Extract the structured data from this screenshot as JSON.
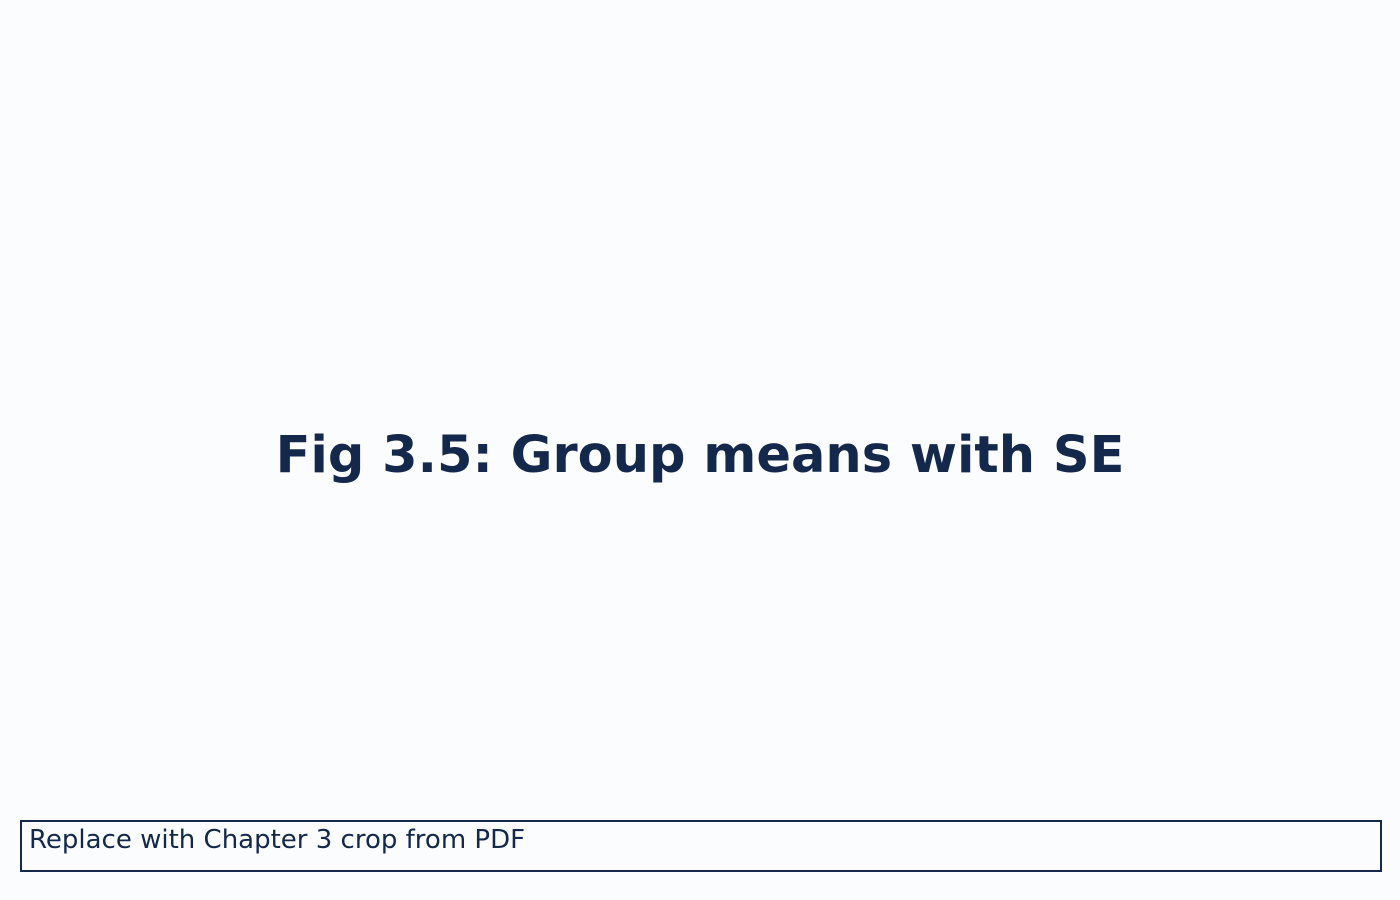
{
  "figure": {
    "title": "Fig 3.5: Group means with SE"
  },
  "note": {
    "text": "Replace with Chapter 3 crop from PDF"
  },
  "colors": {
    "background": "#fbfcfe",
    "text": "#13284b",
    "border": "#13284b"
  }
}
